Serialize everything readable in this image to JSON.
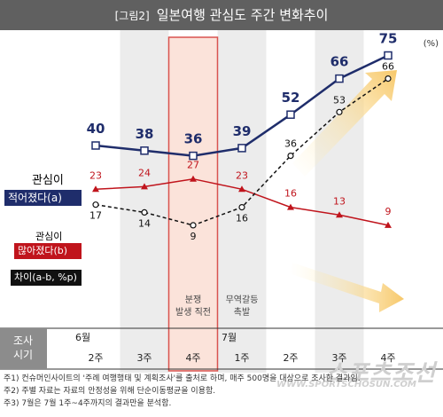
{
  "header": {
    "tag": "[그림2]",
    "title": "일본여행 관심도 주간 변화추이"
  },
  "unit": "(%)",
  "chart_data": {
    "type": "line",
    "categories": [
      "2주",
      "3주",
      "4주",
      "1주",
      "2주",
      "3주",
      "4주"
    ],
    "months": [
      {
        "label": "6월",
        "start": 0
      },
      {
        "label": "7월",
        "start": 3
      }
    ],
    "series": [
      {
        "name": "적어졌다(a)",
        "values": [
          40,
          38,
          36,
          39,
          52,
          66,
          75
        ],
        "color": "#1f2d6b"
      },
      {
        "name": "많아졌다(b)",
        "values": [
          23,
          24,
          27,
          23,
          16,
          13,
          9
        ],
        "color": "#c0141c"
      },
      {
        "name": "차이(a-b, %p)",
        "values": [
          17,
          14,
          9,
          16,
          36,
          53,
          66
        ],
        "color": "#111111"
      }
    ],
    "annotations": [
      {
        "index": 2,
        "text": "분쟁\n발생 직전"
      },
      {
        "index": 3,
        "text": "무역갈등\n촉발"
      }
    ],
    "highlight_index": 2,
    "axis_title": "조사\n시기"
  },
  "legend": {
    "a_prefix": "관심이",
    "a_box": "적어졌다(a)",
    "b_prefix": "관심이",
    "b_box": "많아졌다(b)",
    "diff_box": "차이(a-b, %p)"
  },
  "notes": [
    "주1) 컨슈머인사이트의 '주례 여행행태 및 계획조사'를 출처로 하며, 매주 500명을 대상으로 조사한 결과임.",
    "주2) 주별 자료는 자료의 안정성을 위해 단순이동평균을 이용함.",
    "주3) 7월은 7월 1주~4주까지의 결과만을 분석함."
  ],
  "watermark": {
    "brand": "스포츠조선",
    "url": "WWW.SPORTSCHOSUN.COM"
  }
}
